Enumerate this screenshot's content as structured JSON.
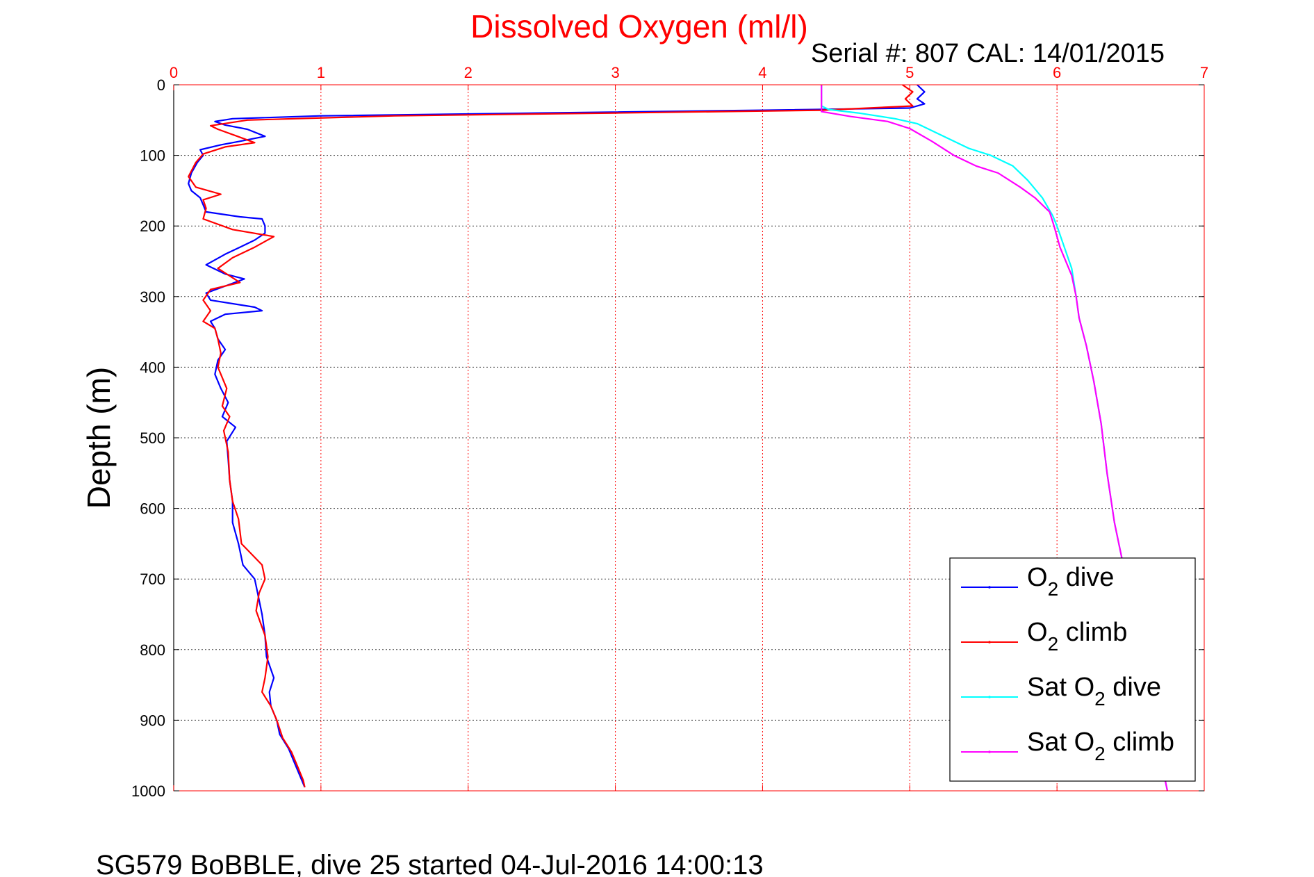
{
  "figure": {
    "title": "Dissolved Oxygen (ml/l)",
    "subtitle": "Serial #: 807  CAL: 14/01/2015",
    "caption": "SG579 BoBBLE, dive 25 started 04-Jul-2016 14:00:13"
  },
  "colors": {
    "accent_axis": "#ff0000",
    "o2_dive": "#0000ff",
    "o2_climb": "#ff0000",
    "sat_o2_dive": "#00ffff",
    "sat_o2_climb": "#ff00ff"
  },
  "chart_data": {
    "type": "line",
    "title": "Dissolved Oxygen (ml/l)",
    "ylabel": "Depth (m)",
    "xlim": [
      0,
      7
    ],
    "ylim": [
      0,
      1000
    ],
    "y_reversed": true,
    "x_axis_position": "top",
    "xticks": [
      0,
      1,
      2,
      3,
      4,
      5,
      6,
      7
    ],
    "yticks": [
      0,
      100,
      200,
      300,
      400,
      500,
      600,
      700,
      800,
      900,
      1000
    ],
    "grid": true,
    "legend_position": "bottom-right",
    "series": [
      {
        "key": "o2_dive",
        "legend_main": "O",
        "legend_sub": "2",
        "legend_rest": " dive",
        "color": "#0000ff",
        "points": [
          [
            5.05,
            0
          ],
          [
            5.1,
            10
          ],
          [
            5.05,
            20
          ],
          [
            5.1,
            27
          ],
          [
            5.0,
            33
          ],
          [
            4.0,
            36
          ],
          [
            2.5,
            40
          ],
          [
            1.0,
            44
          ],
          [
            0.4,
            48
          ],
          [
            0.28,
            52
          ],
          [
            0.35,
            57
          ],
          [
            0.5,
            63
          ],
          [
            0.62,
            73
          ],
          [
            0.45,
            80
          ],
          [
            0.32,
            85
          ],
          [
            0.18,
            92
          ],
          [
            0.2,
            100
          ],
          [
            0.16,
            110
          ],
          [
            0.12,
            125
          ],
          [
            0.1,
            140
          ],
          [
            0.12,
            150
          ],
          [
            0.18,
            160
          ],
          [
            0.2,
            170
          ],
          [
            0.22,
            180
          ],
          [
            0.45,
            187
          ],
          [
            0.6,
            190
          ],
          [
            0.62,
            200
          ],
          [
            0.62,
            210
          ],
          [
            0.55,
            220
          ],
          [
            0.45,
            230
          ],
          [
            0.35,
            240
          ],
          [
            0.22,
            255
          ],
          [
            0.35,
            268
          ],
          [
            0.48,
            275
          ],
          [
            0.35,
            285
          ],
          [
            0.22,
            295
          ],
          [
            0.25,
            305
          ],
          [
            0.55,
            315
          ],
          [
            0.6,
            320
          ],
          [
            0.35,
            325
          ],
          [
            0.25,
            335
          ],
          [
            0.28,
            345
          ],
          [
            0.3,
            360
          ],
          [
            0.35,
            375
          ],
          [
            0.3,
            390
          ],
          [
            0.28,
            410
          ],
          [
            0.32,
            430
          ],
          [
            0.37,
            450
          ],
          [
            0.33,
            470
          ],
          [
            0.42,
            485
          ],
          [
            0.36,
            505
          ],
          [
            0.37,
            530
          ],
          [
            0.38,
            560
          ],
          [
            0.4,
            590
          ],
          [
            0.4,
            620
          ],
          [
            0.44,
            650
          ],
          [
            0.47,
            680
          ],
          [
            0.55,
            700
          ],
          [
            0.57,
            720
          ],
          [
            0.6,
            750
          ],
          [
            0.62,
            780
          ],
          [
            0.63,
            810
          ],
          [
            0.68,
            840
          ],
          [
            0.65,
            860
          ],
          [
            0.66,
            880
          ],
          [
            0.7,
            900
          ],
          [
            0.72,
            920
          ],
          [
            0.78,
            940
          ],
          [
            0.82,
            960
          ],
          [
            0.86,
            980
          ],
          [
            0.89,
            995
          ]
        ]
      },
      {
        "key": "o2_climb",
        "legend_main": "O",
        "legend_sub": "2",
        "legend_rest": " climb",
        "color": "#ff0000",
        "points": [
          [
            4.95,
            0
          ],
          [
            5.02,
            10
          ],
          [
            4.97,
            20
          ],
          [
            5.02,
            30
          ],
          [
            4.4,
            36
          ],
          [
            3.0,
            40
          ],
          [
            1.5,
            44
          ],
          [
            0.5,
            50
          ],
          [
            0.25,
            58
          ],
          [
            0.3,
            63
          ],
          [
            0.42,
            72
          ],
          [
            0.55,
            82
          ],
          [
            0.35,
            88
          ],
          [
            0.2,
            98
          ],
          [
            0.15,
            110
          ],
          [
            0.1,
            130
          ],
          [
            0.15,
            145
          ],
          [
            0.32,
            155
          ],
          [
            0.2,
            163
          ],
          [
            0.22,
            175
          ],
          [
            0.2,
            190
          ],
          [
            0.4,
            205
          ],
          [
            0.68,
            215
          ],
          [
            0.55,
            230
          ],
          [
            0.4,
            245
          ],
          [
            0.3,
            260
          ],
          [
            0.45,
            280
          ],
          [
            0.25,
            290
          ],
          [
            0.2,
            305
          ],
          [
            0.25,
            320
          ],
          [
            0.2,
            335
          ],
          [
            0.28,
            345
          ],
          [
            0.3,
            360
          ],
          [
            0.32,
            380
          ],
          [
            0.3,
            400
          ],
          [
            0.36,
            430
          ],
          [
            0.33,
            455
          ],
          [
            0.38,
            470
          ],
          [
            0.34,
            490
          ],
          [
            0.37,
            520
          ],
          [
            0.38,
            560
          ],
          [
            0.4,
            590
          ],
          [
            0.44,
            615
          ],
          [
            0.46,
            650
          ],
          [
            0.6,
            680
          ],
          [
            0.62,
            700
          ],
          [
            0.58,
            720
          ],
          [
            0.56,
            745
          ],
          [
            0.62,
            780
          ],
          [
            0.64,
            810
          ],
          [
            0.62,
            840
          ],
          [
            0.6,
            860
          ],
          [
            0.66,
            880
          ],
          [
            0.7,
            900
          ],
          [
            0.74,
            925
          ],
          [
            0.8,
            945
          ],
          [
            0.84,
            965
          ],
          [
            0.88,
            985
          ],
          [
            0.89,
            995
          ]
        ]
      },
      {
        "key": "sat_o2_dive",
        "legend_main": "Sat O",
        "legend_sub": "2",
        "legend_rest": " dive",
        "color": "#00ffff",
        "points": [
          [
            4.4,
            0
          ],
          [
            4.4,
            30
          ],
          [
            4.45,
            35
          ],
          [
            4.65,
            40
          ],
          [
            4.9,
            48
          ],
          [
            5.05,
            55
          ],
          [
            5.2,
            70
          ],
          [
            5.4,
            90
          ],
          [
            5.55,
            100
          ],
          [
            5.7,
            115
          ],
          [
            5.8,
            135
          ],
          [
            5.9,
            160
          ],
          [
            5.97,
            185
          ],
          [
            6.0,
            200
          ],
          [
            6.05,
            230
          ],
          [
            6.1,
            260
          ],
          [
            6.13,
            300
          ],
          [
            6.15,
            330
          ],
          [
            6.2,
            370
          ],
          [
            6.25,
            420
          ],
          [
            6.3,
            480
          ],
          [
            6.34,
            550
          ],
          [
            6.39,
            620
          ],
          [
            6.45,
            680
          ],
          [
            6.48,
            720
          ],
          [
            6.52,
            760
          ],
          [
            6.55,
            800
          ],
          [
            6.6,
            850
          ],
          [
            6.65,
            900
          ],
          [
            6.7,
            950
          ],
          [
            6.75,
            1000
          ]
        ]
      },
      {
        "key": "sat_o2_climb",
        "legend_main": "Sat O",
        "legend_sub": "2",
        "legend_rest": " climb",
        "color": "#ff00ff",
        "points": [
          [
            4.4,
            0
          ],
          [
            4.4,
            38
          ],
          [
            4.6,
            45
          ],
          [
            4.85,
            52
          ],
          [
            5.0,
            62
          ],
          [
            5.15,
            80
          ],
          [
            5.3,
            100
          ],
          [
            5.45,
            115
          ],
          [
            5.6,
            125
          ],
          [
            5.75,
            145
          ],
          [
            5.85,
            160
          ],
          [
            5.95,
            180
          ],
          [
            5.98,
            200
          ],
          [
            6.02,
            230
          ],
          [
            6.1,
            270
          ],
          [
            6.13,
            300
          ],
          [
            6.15,
            330
          ],
          [
            6.2,
            370
          ],
          [
            6.25,
            420
          ],
          [
            6.3,
            480
          ],
          [
            6.34,
            550
          ],
          [
            6.39,
            620
          ],
          [
            6.45,
            680
          ],
          [
            6.48,
            720
          ],
          [
            6.52,
            760
          ],
          [
            6.55,
            800
          ],
          [
            6.6,
            850
          ],
          [
            6.65,
            900
          ],
          [
            6.7,
            950
          ],
          [
            6.75,
            1000
          ]
        ]
      }
    ]
  }
}
